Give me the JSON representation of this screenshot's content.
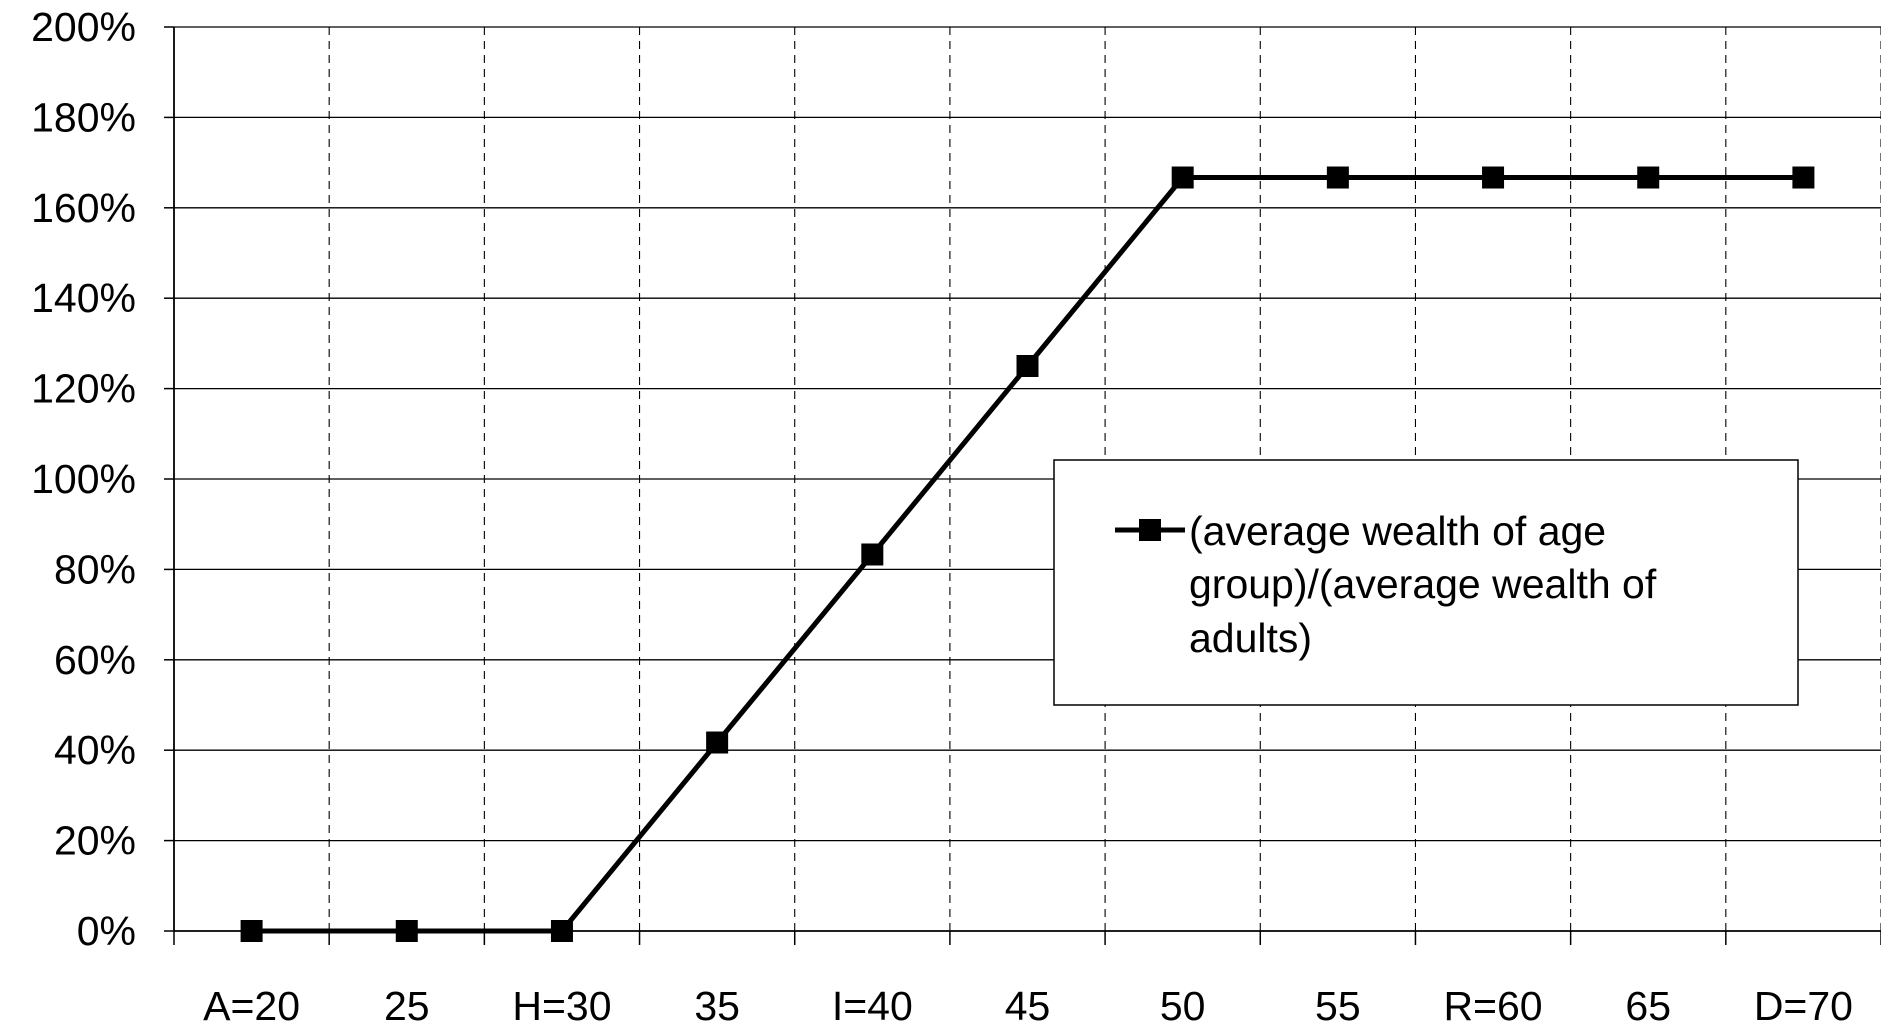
{
  "chart_data": {
    "type": "line",
    "title": "",
    "xlabel": "",
    "ylabel": "",
    "categories": [
      "A=20",
      "25",
      "H=30",
      "35",
      "I=40",
      "45",
      "50",
      "55",
      "R=60",
      "65",
      "D=70"
    ],
    "y_tick_labels": [
      "0%",
      "20%",
      "40%",
      "60%",
      "80%",
      "100%",
      "120%",
      "140%",
      "160%",
      "180%",
      "200%"
    ],
    "ylim": [
      0,
      200
    ],
    "y_unit": "%",
    "grid": {
      "horizontal": "solid",
      "vertical": "dashed"
    },
    "legend_position": "center-right",
    "series": [
      {
        "name_lines": [
          "(average wealth of age",
          "group)/(average wealth of",
          "adults)"
        ],
        "color": "#000000",
        "marker": "square",
        "points": [
          {
            "x": 20.5,
            "y": 0
          },
          {
            "x": 25.5,
            "y": 0
          },
          {
            "x": 30.5,
            "y": 0
          },
          {
            "x": 35.5,
            "y": 41.7
          },
          {
            "x": 40.5,
            "y": 83.3
          },
          {
            "x": 45.5,
            "y": 125
          },
          {
            "x": 50.5,
            "y": 166.7
          },
          {
            "x": 55.5,
            "y": 166.7
          },
          {
            "x": 60.5,
            "y": 166.7
          },
          {
            "x": 65.5,
            "y": 166.7
          },
          {
            "x": 70.5,
            "y": 166.7
          }
        ]
      }
    ]
  }
}
